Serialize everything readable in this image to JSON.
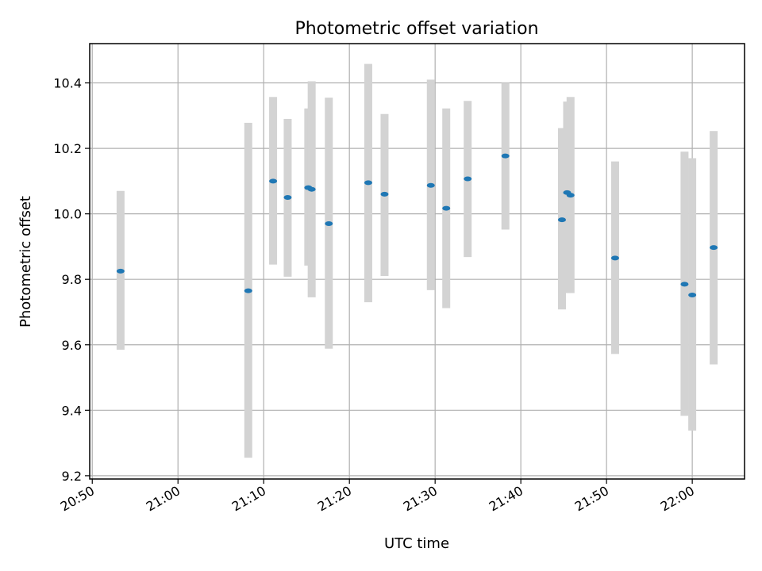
{
  "chart_data": {
    "type": "scatter",
    "title": "Photometric offset variation",
    "xlabel": "UTC time",
    "ylabel": "Photometric offset",
    "x_ticks": [
      "20:50",
      "21:00",
      "21:10",
      "21:20",
      "21:30",
      "21:40",
      "21:50",
      "22:00"
    ],
    "y_ticks": [
      "9.2",
      "9.4",
      "9.6",
      "9.8",
      "10.0",
      "10.2",
      "10.4"
    ],
    "xlim": [
      "20:49.7",
      "22:06.1"
    ],
    "ylim": [
      9.19,
      10.52
    ],
    "grid": true,
    "legend": "none",
    "colors": {
      "points": "#1f77b4",
      "error_bars": "#d3d3d3"
    },
    "series": [
      {
        "x": [
          "20:53.3",
          "21:08.2",
          "21:11.1",
          "21:12.8",
          "21:15.2",
          "21:15.6",
          "21:17.6",
          "21:22.2",
          "21:24.1",
          "21:29.5",
          "21:31.3",
          "21:33.8",
          "21:38.2",
          "21:44.8",
          "21:45.4",
          "21:45.8",
          "21:51.0",
          "21:59.1",
          "21:60.0",
          "22:02.5"
        ],
        "y": [
          9.825,
          9.765,
          10.1,
          10.05,
          10.08,
          10.075,
          9.97,
          10.095,
          10.06,
          10.087,
          10.017,
          10.107,
          10.177,
          9.982,
          10.065,
          10.057,
          9.865,
          9.785,
          9.752,
          9.897
        ],
        "yerr_low": [
          9.585,
          9.255,
          9.845,
          9.808,
          9.842,
          9.745,
          9.588,
          9.73,
          9.81,
          9.767,
          9.712,
          9.868,
          9.952,
          9.708,
          9.758,
          9.758,
          9.572,
          9.383,
          9.338,
          9.54
        ],
        "yerr_high": [
          10.07,
          10.278,
          10.357,
          10.29,
          10.322,
          10.405,
          10.355,
          10.458,
          10.305,
          10.41,
          10.322,
          10.345,
          10.4,
          10.262,
          10.343,
          10.357,
          10.16,
          10.19,
          10.17,
          10.253
        ]
      }
    ]
  }
}
